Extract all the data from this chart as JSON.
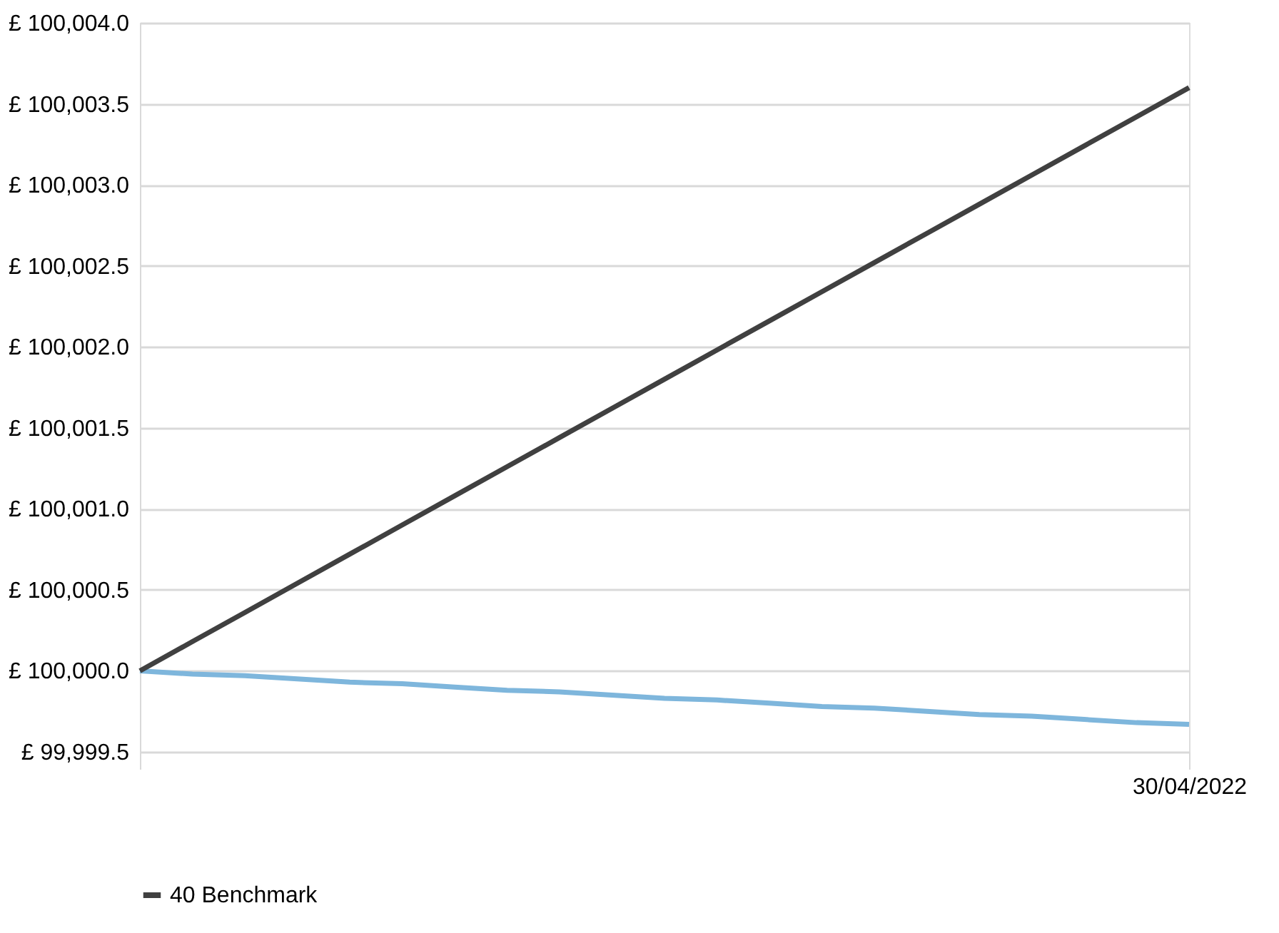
{
  "chart_data": {
    "type": "line",
    "categories": [
      null,
      null,
      null,
      null,
      null,
      null,
      null,
      null,
      null,
      null,
      null,
      null,
      null,
      null,
      null,
      null,
      null,
      null,
      null,
      null,
      "30/04/2022"
    ],
    "series": [
      {
        "color": "#7eb6dc",
        "values": [
          100000.0,
          99999.98,
          99999.97,
          99999.95,
          99999.93,
          99999.92,
          99999.9,
          99999.88,
          99999.87,
          99999.85,
          99999.83,
          99999.82,
          99999.8,
          99999.78,
          99999.77,
          99999.75,
          99999.73,
          99999.72,
          99999.7,
          99999.68,
          99999.67
        ]
      },
      {
        "name": "40 Benchmark",
        "color": "#404040",
        "values": [
          100000.0,
          100000.18,
          100000.36,
          100000.54,
          100000.72,
          100000.9,
          100001.08,
          100001.26,
          100001.44,
          100001.62,
          100001.8,
          100001.98,
          100002.16,
          100002.34,
          100002.52,
          100002.7,
          100002.88,
          100003.06,
          100003.24,
          100003.42,
          100003.6
        ]
      }
    ],
    "ylim": [
      99999.5,
      100004.0
    ],
    "yticks": [
      {
        "value": 99999.5,
        "label": "£ 99,999.5"
      },
      {
        "value": 100000.0,
        "label": "£ 100,000.0"
      },
      {
        "value": 100000.5,
        "label": "£ 100,000.5"
      },
      {
        "value": 100001.0,
        "label": "£ 100,001.0"
      },
      {
        "value": 100001.5,
        "label": "£ 100,001.5"
      },
      {
        "value": 100002.0,
        "label": "£ 100,002.0"
      },
      {
        "value": 100002.5,
        "label": "£ 100,002.5"
      },
      {
        "value": 100003.0,
        "label": "£ 100,003.0"
      },
      {
        "value": 100003.5,
        "label": "£ 100,003.5"
      },
      {
        "value": 100004.0,
        "label": "£ 100,004.0"
      }
    ],
    "grid": "y",
    "legend": "bottom",
    "marker": "none",
    "line_style": "solid"
  }
}
